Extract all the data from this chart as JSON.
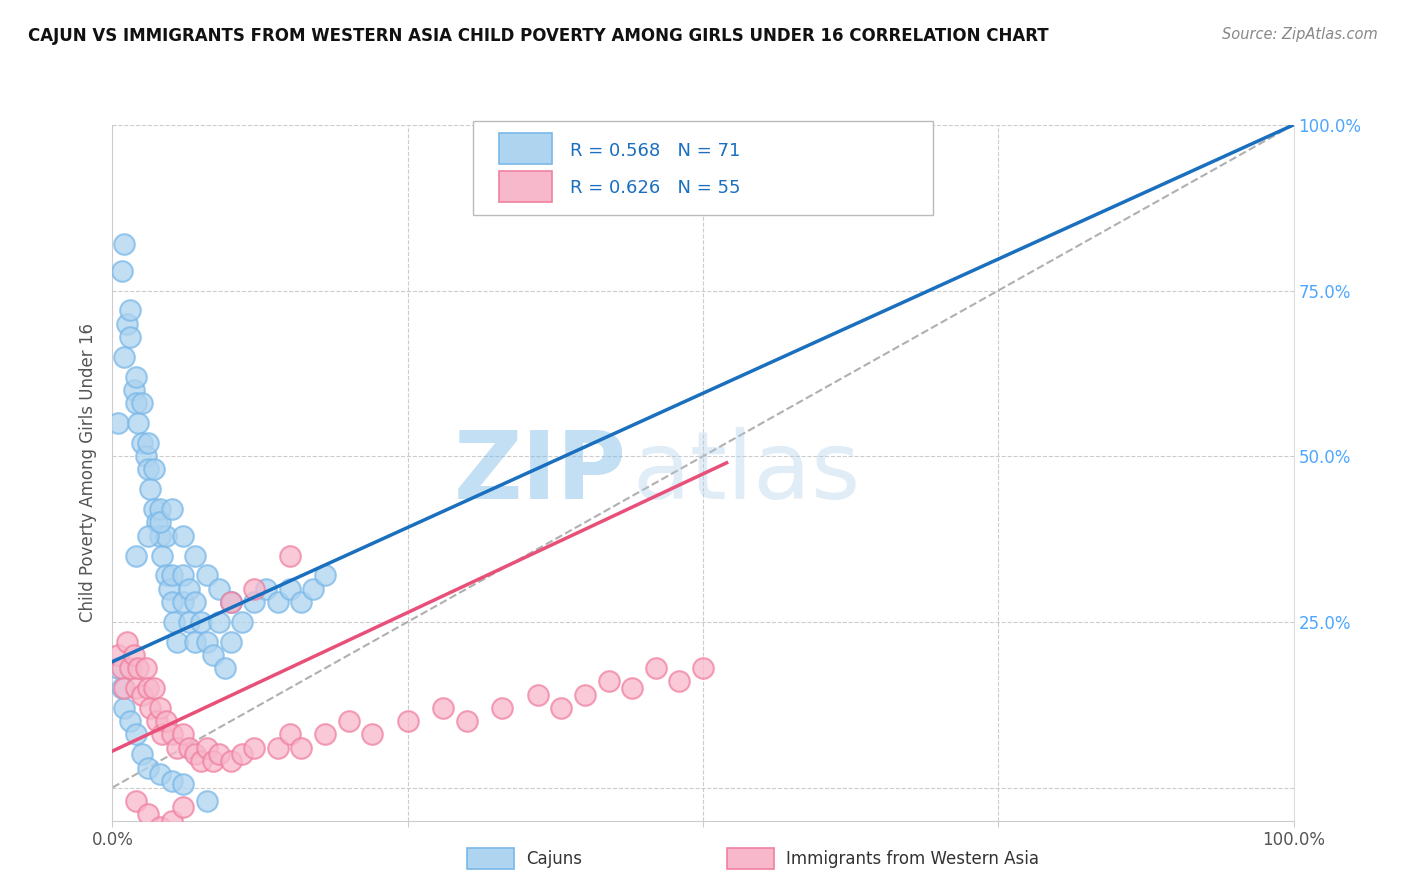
{
  "title": "CAJUN VS IMMIGRANTS FROM WESTERN ASIA CHILD POVERTY AMONG GIRLS UNDER 16 CORRELATION CHART",
  "source": "Source: ZipAtlas.com",
  "ylabel": "Child Poverty Among Girls Under 16",
  "watermark_zip": "ZIP",
  "watermark_atlas": "atlas",
  "legend_r1": "R = 0.568",
  "legend_n1": "N = 71",
  "legend_r2": "R = 0.626",
  "legend_n2": "N = 55",
  "cajun_color": "#7ab8e8",
  "cajun_fill": "#aed4f0",
  "western_asia_color": "#f080a0",
  "western_asia_fill": "#f8b8cc",
  "ref_line_color": "#b0b0b0",
  "blue_line_color": "#1a6fbe",
  "pink_line_color": "#e8507a",
  "background_color": "#ffffff",
  "grid_color": "#cccccc",
  "blue_line_x0": 0.0,
  "blue_line_y0": 0.19,
  "blue_line_x1": 1.0,
  "blue_line_y1": 1.0,
  "pink_line_x0": 0.0,
  "pink_line_y0": 0.055,
  "pink_line_x1": 0.52,
  "pink_line_y1": 0.49,
  "cajun_x": [
    0.005,
    0.008,
    0.01,
    0.01,
    0.012,
    0.015,
    0.015,
    0.018,
    0.02,
    0.02,
    0.022,
    0.025,
    0.025,
    0.028,
    0.03,
    0.03,
    0.032,
    0.035,
    0.035,
    0.038,
    0.04,
    0.04,
    0.042,
    0.045,
    0.045,
    0.048,
    0.05,
    0.05,
    0.052,
    0.055,
    0.06,
    0.06,
    0.065,
    0.065,
    0.07,
    0.07,
    0.075,
    0.08,
    0.085,
    0.09,
    0.095,
    0.1,
    0.1,
    0.11,
    0.12,
    0.13,
    0.14,
    0.15,
    0.16,
    0.17,
    0.18,
    0.02,
    0.03,
    0.04,
    0.05,
    0.06,
    0.07,
    0.08,
    0.09,
    0.1,
    0.005,
    0.008,
    0.01,
    0.015,
    0.02,
    0.025,
    0.03,
    0.04,
    0.05,
    0.06,
    0.08
  ],
  "cajun_y": [
    0.55,
    0.78,
    0.82,
    0.65,
    0.7,
    0.68,
    0.72,
    0.6,
    0.58,
    0.62,
    0.55,
    0.52,
    0.58,
    0.5,
    0.48,
    0.52,
    0.45,
    0.42,
    0.48,
    0.4,
    0.38,
    0.42,
    0.35,
    0.32,
    0.38,
    0.3,
    0.28,
    0.32,
    0.25,
    0.22,
    0.28,
    0.32,
    0.25,
    0.3,
    0.22,
    0.28,
    0.25,
    0.22,
    0.2,
    0.25,
    0.18,
    0.22,
    0.28,
    0.25,
    0.28,
    0.3,
    0.28,
    0.3,
    0.28,
    0.3,
    0.32,
    0.35,
    0.38,
    0.4,
    0.42,
    0.38,
    0.35,
    0.32,
    0.3,
    0.28,
    0.18,
    0.15,
    0.12,
    0.1,
    0.08,
    0.05,
    0.03,
    0.02,
    0.01,
    0.005,
    -0.02
  ],
  "western_x": [
    0.005,
    0.008,
    0.01,
    0.012,
    0.015,
    0.018,
    0.02,
    0.022,
    0.025,
    0.028,
    0.03,
    0.032,
    0.035,
    0.038,
    0.04,
    0.042,
    0.045,
    0.05,
    0.055,
    0.06,
    0.065,
    0.07,
    0.075,
    0.08,
    0.085,
    0.09,
    0.1,
    0.11,
    0.12,
    0.14,
    0.15,
    0.16,
    0.18,
    0.2,
    0.22,
    0.25,
    0.28,
    0.3,
    0.33,
    0.36,
    0.38,
    0.4,
    0.42,
    0.44,
    0.46,
    0.48,
    0.5,
    0.1,
    0.12,
    0.15,
    0.02,
    0.03,
    0.04,
    0.05,
    0.06
  ],
  "western_y": [
    0.2,
    0.18,
    0.15,
    0.22,
    0.18,
    0.2,
    0.15,
    0.18,
    0.14,
    0.18,
    0.15,
    0.12,
    0.15,
    0.1,
    0.12,
    0.08,
    0.1,
    0.08,
    0.06,
    0.08,
    0.06,
    0.05,
    0.04,
    0.06,
    0.04,
    0.05,
    0.04,
    0.05,
    0.06,
    0.06,
    0.08,
    0.06,
    0.08,
    0.1,
    0.08,
    0.1,
    0.12,
    0.1,
    0.12,
    0.14,
    0.12,
    0.14,
    0.16,
    0.15,
    0.18,
    0.16,
    0.18,
    0.28,
    0.3,
    0.35,
    -0.02,
    -0.04,
    -0.06,
    -0.05,
    -0.03
  ],
  "xlim": [
    0.0,
    1.0
  ],
  "ylim": [
    -0.05,
    1.0
  ],
  "xtick_positions": [
    0.0,
    0.25,
    0.5,
    0.75,
    1.0
  ],
  "ytick_positions": [
    0.0,
    0.25,
    0.5,
    0.75,
    1.0
  ],
  "ytick_labels_right": [
    "",
    "25.0%",
    "50.0%",
    "75.0%",
    "100.0%"
  ]
}
